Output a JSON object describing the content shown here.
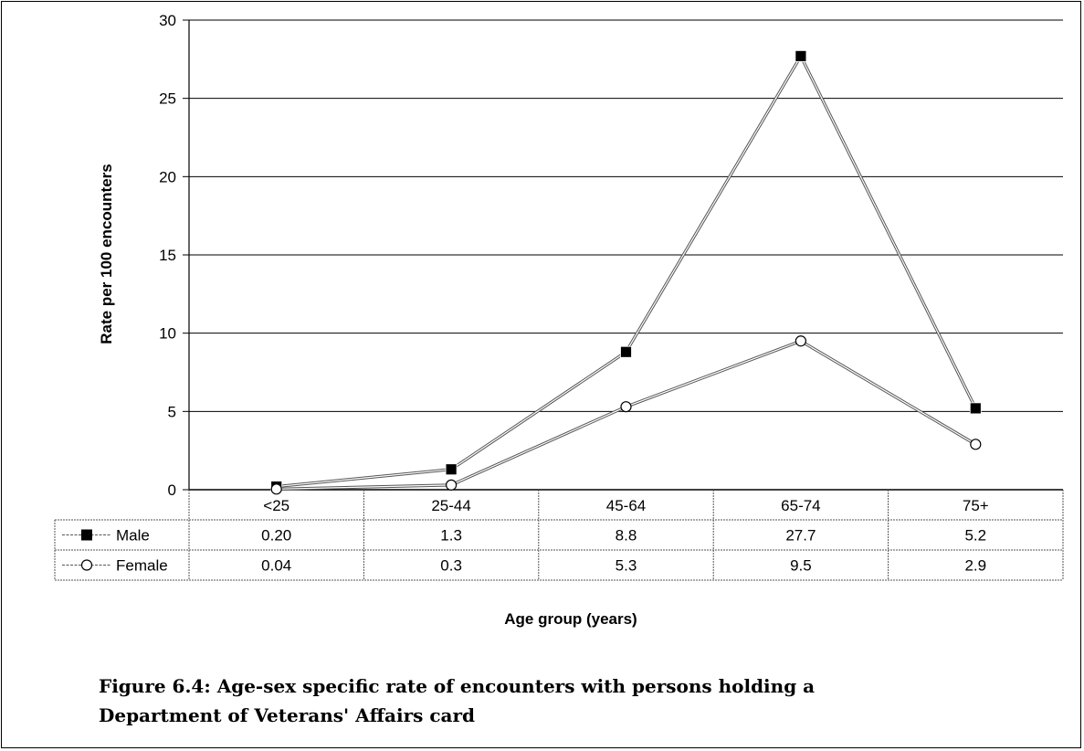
{
  "chart_data": {
    "type": "line",
    "categories": [
      "<25",
      "25-44",
      "45-64",
      "65-74",
      "75+"
    ],
    "series": [
      {
        "name": "Male",
        "marker": "filled-square",
        "color": "#000000",
        "values": [
          0.2,
          1.3,
          8.8,
          27.7,
          5.2
        ],
        "labels": [
          "0.20",
          "1.3",
          "8.8",
          "27.7",
          "5.2"
        ]
      },
      {
        "name": "Female",
        "marker": "open-circle",
        "color": "#000000",
        "values": [
          0.04,
          0.3,
          5.3,
          9.5,
          2.9
        ],
        "labels": [
          "0.04",
          "0.3",
          "5.3",
          "9.5",
          "2.9"
        ]
      }
    ],
    "ylabel": "Rate per 100 encounters",
    "xlabel": "Age group (years)",
    "ylim": [
      0,
      30
    ],
    "yticks": [
      0,
      5,
      10,
      15,
      20,
      25,
      30
    ],
    "grid": true,
    "legend": "data-table"
  },
  "caption": {
    "line1": "Figure 6.4: Age-sex specific rate of encounters with persons holding a",
    "line2": "Department of Veterans' Affairs card"
  }
}
